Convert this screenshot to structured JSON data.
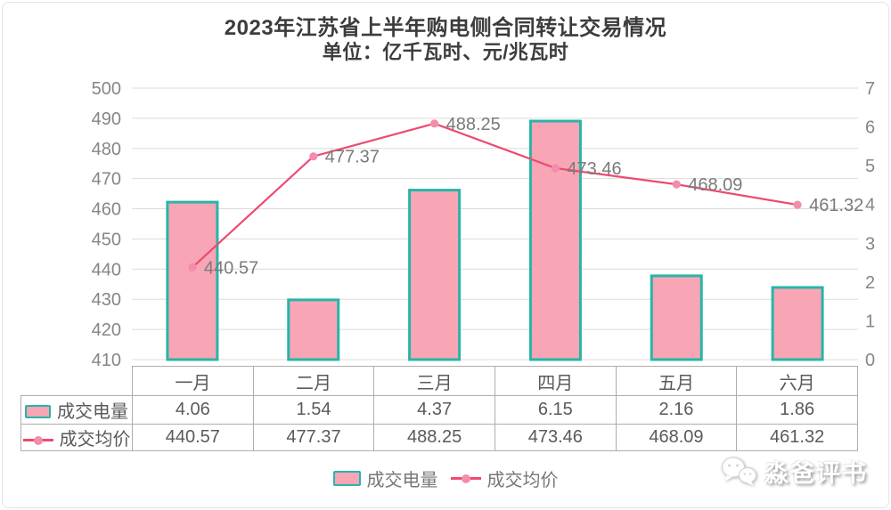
{
  "title": {
    "line1": "2023年江苏省上半年购电侧合同转让交易情况",
    "line2": "单位：亿千瓦时、元/兆瓦时"
  },
  "chart_data": {
    "type": "bar",
    "subtype": "bar+line combo, dual y-axis",
    "categories": [
      "一月",
      "二月",
      "三月",
      "四月",
      "五月",
      "六月"
    ],
    "series": [
      {
        "name": "成交电量",
        "type": "bar",
        "y_axis": "right",
        "values": [
          4.06,
          1.54,
          4.37,
          6.15,
          2.16,
          1.86
        ]
      },
      {
        "name": "成交均价",
        "type": "line",
        "y_axis": "left",
        "values": [
          440.57,
          477.37,
          488.25,
          473.46,
          468.09,
          461.32
        ],
        "labels": [
          "440.57",
          "477.37",
          "488.25",
          "473.46",
          "468.09",
          "461.32"
        ]
      }
    ],
    "left_axis": {
      "min": 410,
      "max": 500,
      "step": 10,
      "ticks": [
        410,
        420,
        430,
        440,
        450,
        460,
        470,
        480,
        490,
        500
      ]
    },
    "right_axis": {
      "min": 0,
      "max": 7,
      "step": 1,
      "ticks": [
        0,
        1,
        2,
        3,
        4,
        5,
        6,
        7
      ]
    },
    "grid": true,
    "legend_position": "bottom",
    "title": "2023年江苏省上半年购电侧合同转让交易情况",
    "subtitle": "单位：亿千瓦时、元/兆瓦时"
  },
  "legend": {
    "bar_label": "成交电量",
    "line_label": "成交均价"
  },
  "table": {
    "months": [
      "一月",
      "二月",
      "三月",
      "四月",
      "五月",
      "六月"
    ],
    "rows": [
      {
        "label": "成交电量",
        "icon": "bar-swatch",
        "values": [
          "4.06",
          "1.54",
          "4.37",
          "6.15",
          "2.16",
          "1.86"
        ]
      },
      {
        "label": "成交均价",
        "icon": "line-swatch",
        "values": [
          "440.57",
          "477.37",
          "488.25",
          "473.46",
          "468.09",
          "461.32"
        ]
      }
    ]
  },
  "watermark": {
    "text": "淼爸评书"
  },
  "colors": {
    "bar_fill": "#F8A5B6",
    "bar_border": "#27B5A8",
    "line": "#EF4A6F",
    "marker": "#F48CAE",
    "grid": "#DCDCDC",
    "axis_text": "#868686",
    "point_label": "#7A7A7A",
    "table_border": "#ADADAD",
    "table_text": "#5A5A5A",
    "title_text": "#3C3C3C",
    "legend_text": "#777777"
  }
}
